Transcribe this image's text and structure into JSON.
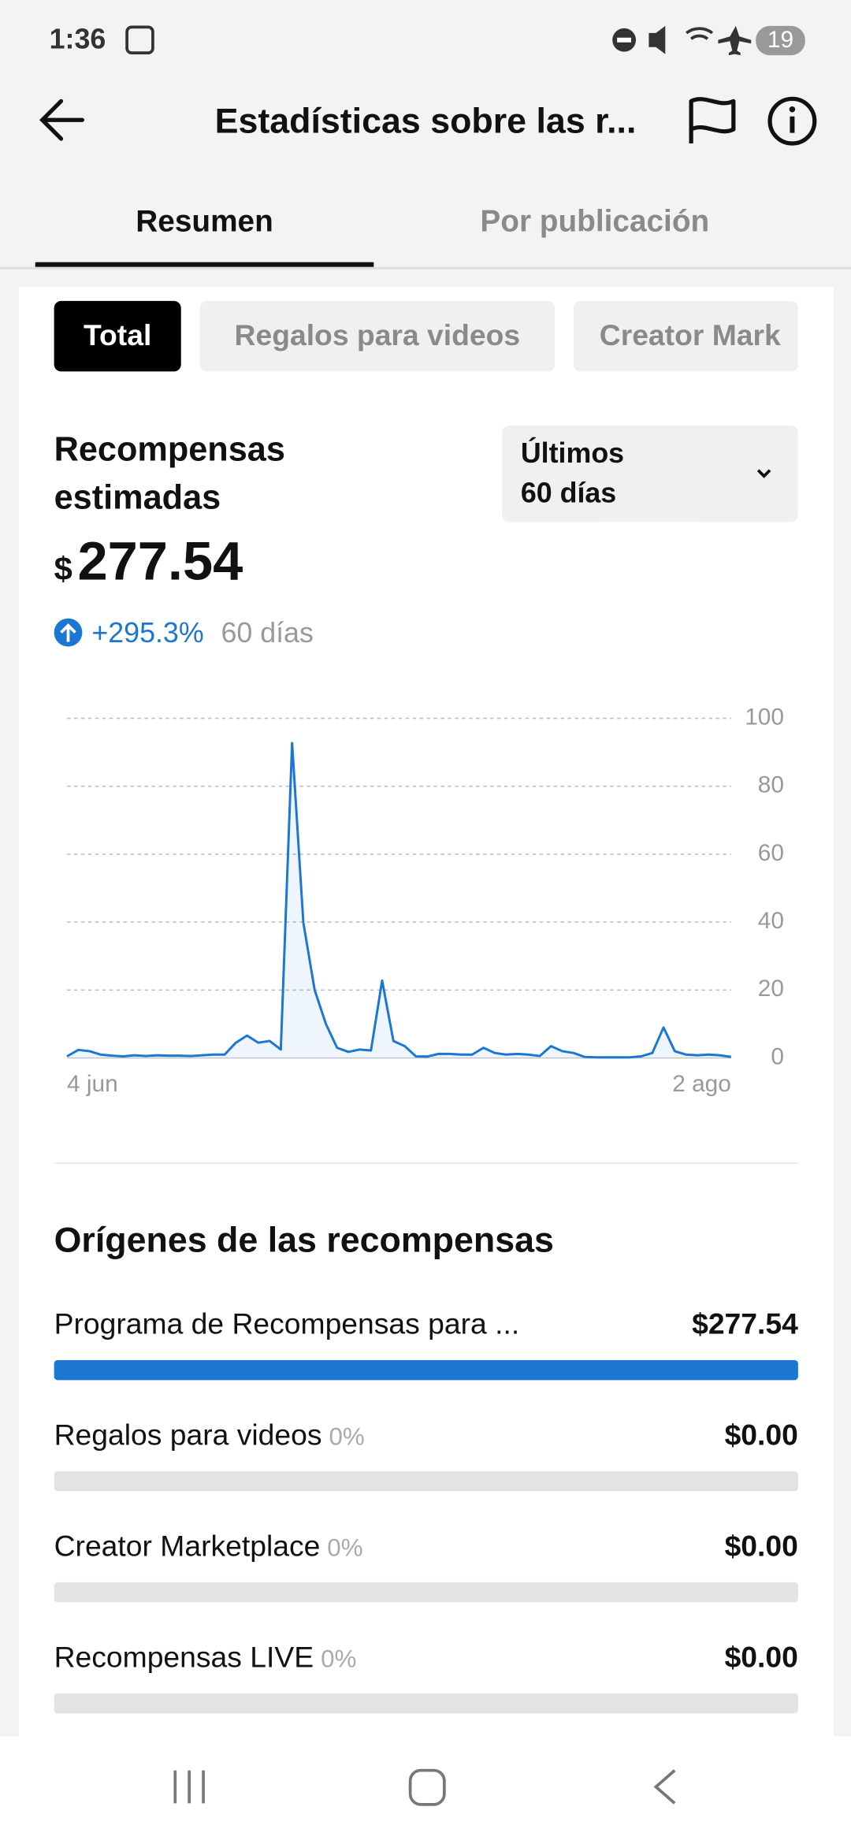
{
  "status_bar": {
    "time": "1:36",
    "battery": "19"
  },
  "header": {
    "title": "Estadísticas sobre las r..."
  },
  "tabs": [
    "Resumen",
    "Por publicación"
  ],
  "filters": [
    "Total",
    "Regalos para videos",
    "Creator Mark"
  ],
  "summary": {
    "title_lines": [
      "Recompensas",
      "estimadas"
    ],
    "period_lines": [
      "Últimos",
      "60 días"
    ],
    "currency": "$",
    "amount": "277.54",
    "change": "+295.3%",
    "change_period": "60 días"
  },
  "chart_data": {
    "type": "line",
    "categories": [
      "4 jun",
      null,
      null,
      null,
      null,
      null,
      null,
      null,
      null,
      null,
      null,
      null,
      null,
      null,
      null,
      null,
      null,
      null,
      null,
      null,
      null,
      null,
      null,
      null,
      null,
      null,
      null,
      null,
      null,
      null,
      null,
      null,
      null,
      null,
      null,
      null,
      null,
      null,
      null,
      null,
      null,
      null,
      null,
      null,
      null,
      null,
      null,
      null,
      null,
      null,
      null,
      null,
      null,
      null,
      null,
      null,
      null,
      null,
      null,
      "2 ago"
    ],
    "values": [
      0.5,
      2.4,
      2,
      1,
      0.7,
      0.5,
      0.8,
      0.6,
      0.8,
      0.7,
      0.7,
      0.6,
      0.8,
      1,
      1,
      4.5,
      6.6,
      4.5,
      5,
      2.5,
      92.7,
      39.8,
      20,
      10,
      3,
      1.8,
      2.5,
      2.2,
      22.8,
      5,
      3.5,
      0.5,
      0.4,
      1.2,
      1.2,
      1,
      1,
      3,
      1.5,
      1,
      1.2,
      1,
      0.6,
      3.5,
      2,
      1.5,
      0.3,
      0.2,
      0.2,
      0.2,
      0.2,
      0.5,
      1.5,
      9,
      2,
      1,
      0.8,
      1,
      0.8,
      0.3
    ],
    "color": "#1b77d2",
    "ylim": [
      0,
      100
    ],
    "yticks": [
      0,
      20,
      40,
      60,
      80,
      100
    ],
    "grid": true
  },
  "sources": {
    "title": "Orígenes de las recompensas",
    "items": [
      {
        "name": "Programa de Recompensas para ...",
        "amount": "$277.54"
      },
      {
        "name": "Regalos para videos",
        "share": "0%",
        "amount": "$0.00"
      },
      {
        "name": "Creator Marketplace",
        "share": "0%",
        "amount": "$0.00"
      },
      {
        "name": "Recompensas LIVE",
        "share": "0%",
        "amount": "$0.00"
      }
    ]
  }
}
